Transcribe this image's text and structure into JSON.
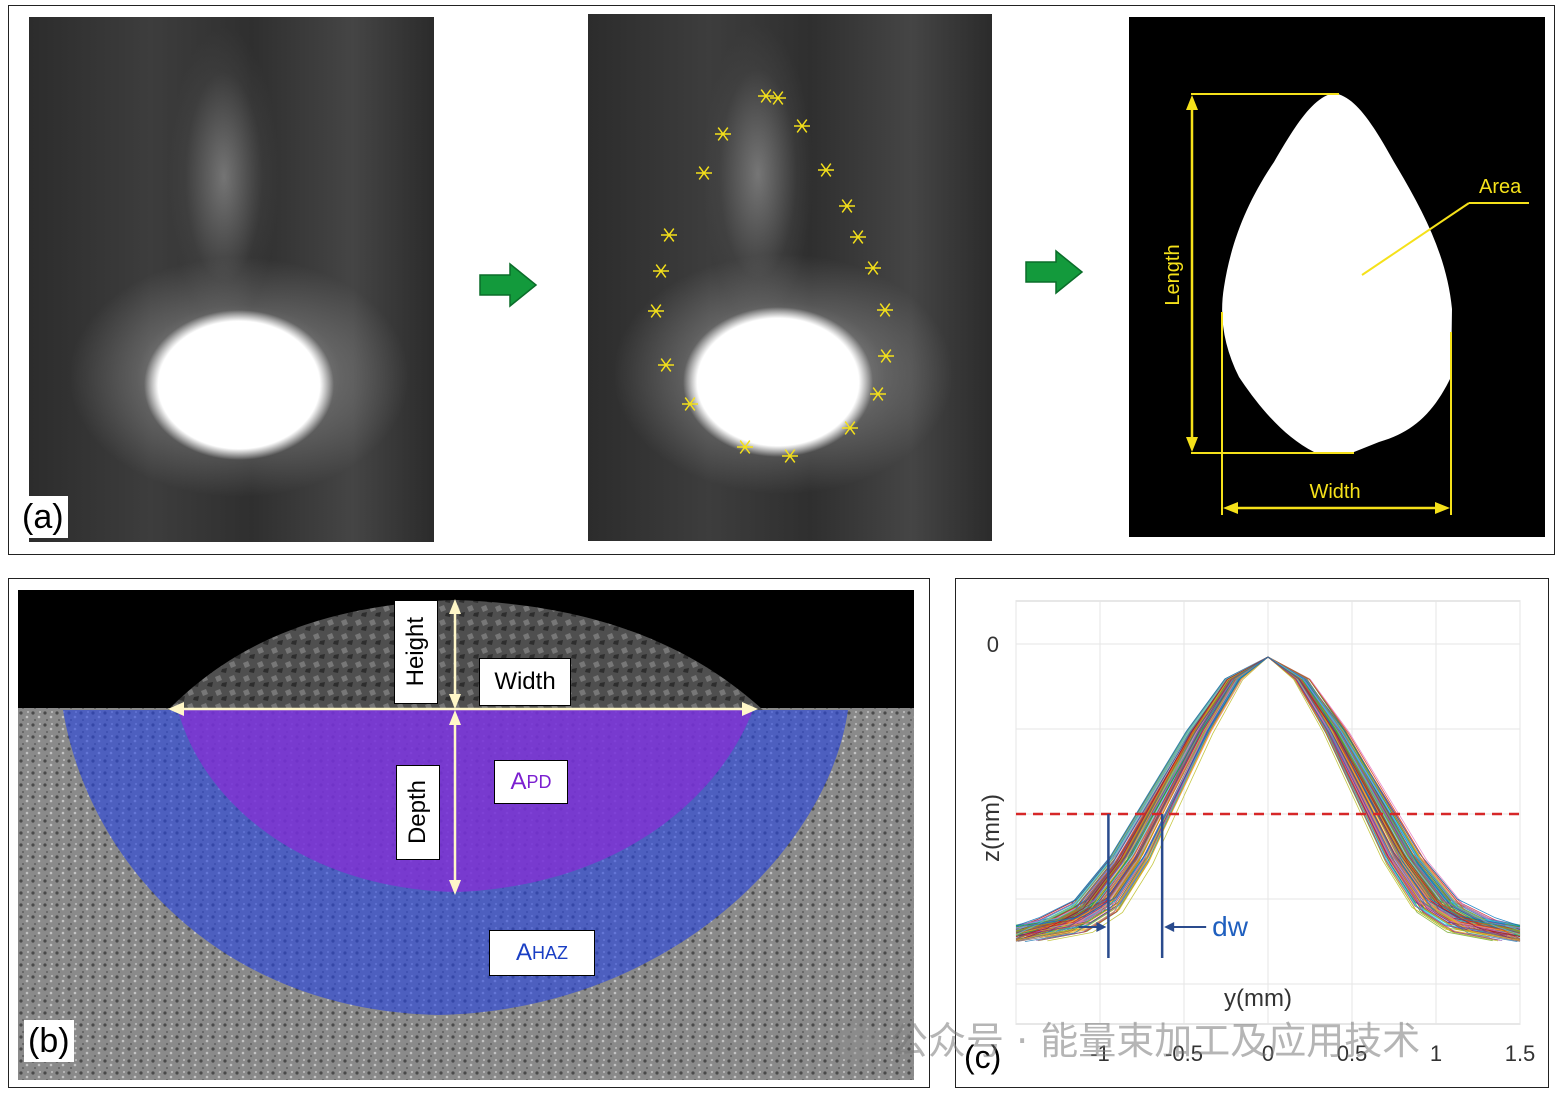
{
  "figure": {
    "panel_a": {
      "label": "(a)",
      "annotations": {
        "area": "Area",
        "length": "Length",
        "width": "Width"
      },
      "colors": {
        "marker": "#f5e11a",
        "arrow": "#139a3c"
      }
    },
    "panel_b": {
      "label": "(b)",
      "annotations": {
        "height": "Height",
        "width": "Width",
        "depth": "Depth"
      },
      "regions": [
        {
          "main": "A",
          "sub": "PD",
          "color": "#7b1fd0"
        },
        {
          "main": "A",
          "sub": "HAZ",
          "color": "#1a3fc4"
        }
      ]
    },
    "panel_c": {
      "label": "(c)",
      "dw_label": "dw",
      "colors": {
        "threshold": "#d62728",
        "dw_marker": "#2a4b8d"
      }
    },
    "watermark": "公众号 · 能量束加工及应用技术"
  },
  "chart_data": {
    "type": "line",
    "xlabel": "y(mm)",
    "ylabel": "z(mm)",
    "xticks": [
      "-1",
      "-0.5",
      "0",
      "0.5",
      "1",
      "1.5"
    ],
    "yticks": [
      "0"
    ],
    "xlim": [
      -1.5,
      1.5
    ],
    "grid": true,
    "series_description": "many overlapping bell-shaped melt-pool cross-section profiles",
    "profile": {
      "y": [
        -1.5,
        -1.2,
        -1.0,
        -0.8,
        -0.6,
        -0.4,
        -0.2,
        0,
        0.2,
        0.4,
        0.6,
        0.8,
        1.0,
        1.2,
        1.5
      ],
      "z_rel": [
        0.0,
        0.03,
        0.1,
        0.27,
        0.5,
        0.73,
        0.92,
        1.0,
        0.92,
        0.73,
        0.5,
        0.27,
        0.1,
        0.03,
        0.0
      ]
    },
    "threshold_line": {
      "style": "dashed",
      "color": "#d62728"
    },
    "dw_markers": {
      "y": [
        -0.95,
        -0.63
      ]
    }
  }
}
